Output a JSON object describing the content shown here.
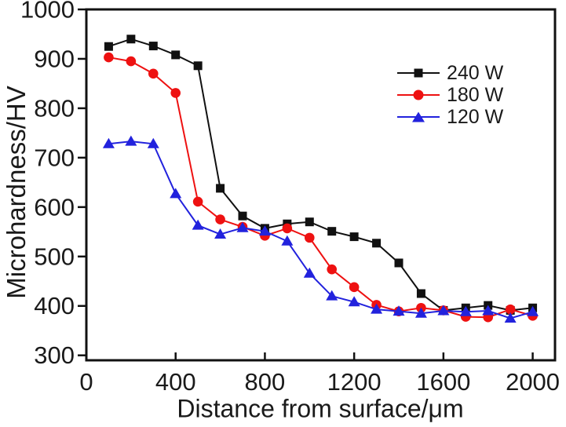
{
  "figure": {
    "background": "#ffffff",
    "frame_color": "#111111"
  },
  "chart_data": {
    "type": "line",
    "title": "",
    "xlabel": "Distance from surface/μm",
    "ylabel": "Microhardness/HV",
    "x": [
      100,
      200,
      300,
      400,
      500,
      600,
      700,
      800,
      900,
      1000,
      1100,
      1200,
      1300,
      1400,
      1500,
      1600,
      1700,
      1800,
      1900,
      2000
    ],
    "series": [
      {
        "name": "240 W",
        "color": "#111111",
        "marker": "square",
        "values": [
          925,
          940,
          926,
          908,
          886,
          638,
          582,
          557,
          566,
          570,
          551,
          540,
          527,
          487,
          425,
          391,
          396,
          401,
          391,
          396
        ]
      },
      {
        "name": "180 W",
        "color": "#ee1111",
        "marker": "circle",
        "values": [
          903,
          895,
          870,
          831,
          611,
          575,
          560,
          542,
          557,
          538,
          474,
          438,
          402,
          389,
          396,
          391,
          378,
          377,
          393,
          380
        ]
      },
      {
        "name": "120 W",
        "color": "#2222dd",
        "marker": "triangle-up",
        "values": [
          728,
          733,
          728,
          627,
          563,
          545,
          558,
          551,
          531,
          466,
          420,
          408,
          393,
          389,
          385,
          390,
          388,
          390,
          375,
          388
        ]
      }
    ],
    "x_ticks": [
      0,
      400,
      800,
      1200,
      1600,
      2000
    ],
    "y_ticks": [
      300,
      400,
      500,
      600,
      700,
      800,
      900,
      1000
    ],
    "xlim": [
      0,
      2100
    ],
    "ylim": [
      290,
      1000
    ],
    "grid": false,
    "legend_position": "upper-right"
  }
}
